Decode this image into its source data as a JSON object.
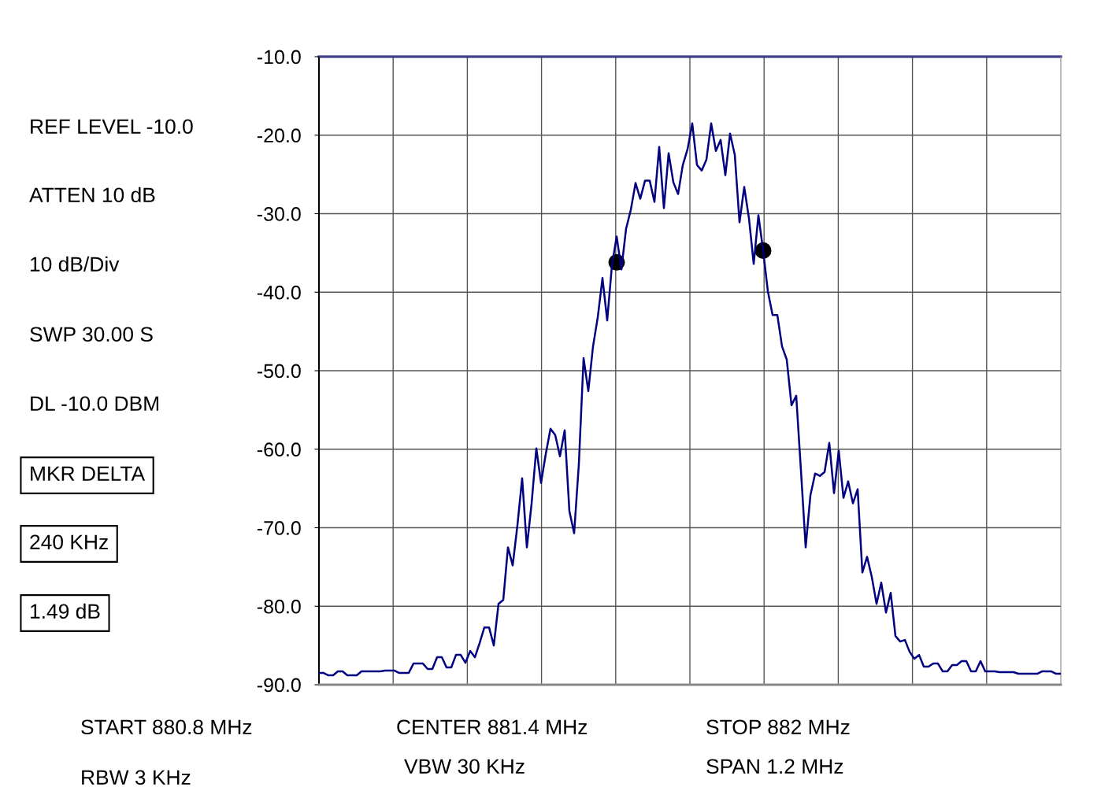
{
  "chart_data": {
    "type": "line",
    "annotations": [
      "REF LEVEL -10.0",
      "ATTEN 10 dB",
      "10 dB/Div",
      "SWP 30.00 S",
      "DL -10.0 DBM",
      "MKR DELTA",
      "240 KHz",
      "1.49 dB",
      "START 880.8 MHz",
      "RBW 3 KHz",
      "CENTER 881.4 MHz",
      "VBW 30 KHz",
      "STOP 882 MHz",
      "SPAN 1.2 MHz"
    ],
    "categories": [
      null,
      null,
      null,
      null,
      null,
      null,
      null,
      null,
      null,
      null,
      null,
      null,
      null,
      null,
      null,
      null,
      null,
      null,
      null,
      null,
      null,
      null,
      null,
      null,
      null,
      null,
      null,
      null,
      null,
      null,
      null,
      null,
      null,
      null,
      null,
      null,
      null,
      null,
      null,
      null,
      null,
      null,
      null,
      null,
      null,
      null,
      null,
      null,
      null,
      null,
      null,
      null,
      null,
      null,
      null,
      null,
      null,
      null,
      null,
      null,
      null,
      null,
      null,
      null,
      null,
      null,
      null,
      null,
      null,
      null,
      null,
      null,
      null,
      null,
      null,
      null,
      null,
      null,
      null,
      null,
      null,
      null,
      null,
      null,
      null,
      null,
      null,
      null,
      null,
      null,
      null,
      null,
      null,
      null,
      null,
      null,
      null,
      null,
      null,
      null,
      null,
      null,
      null,
      null,
      null,
      null,
      null,
      null,
      null,
      null,
      null,
      null,
      null,
      null,
      null,
      null,
      null,
      null,
      null,
      null,
      null,
      null,
      null,
      null,
      null,
      null,
      null,
      null,
      null,
      null,
      null,
      null,
      null,
      null,
      null,
      null,
      null,
      null,
      null,
      null,
      null,
      null,
      null,
      null,
      null,
      null,
      null,
      null,
      null,
      null,
      null,
      null,
      null,
      null,
      null,
      null,
      null,
      null
    ],
    "series": [
      {
        "type": "line",
        "color": "#000080",
        "values": [
          -88.5,
          -88.5,
          -88.8,
          -88.8,
          -88.3,
          -88.3,
          -88.8,
          -88.8,
          -88.8,
          -88.3,
          -88.3,
          -88.3,
          -88.3,
          -88.3,
          -88.2,
          -88.2,
          -88.2,
          -88.5,
          -88.5,
          -88.5,
          -87.3,
          -87.3,
          -87.3,
          -88.0,
          -88.0,
          -86.5,
          -86.5,
          -87.8,
          -87.8,
          -86.2,
          -86.2,
          -87.2,
          -85.7,
          -86.5,
          -84.7,
          -82.7,
          -82.7,
          -85.0,
          -79.7,
          -79.2,
          -72.5,
          -74.8,
          -69.7,
          -63.7,
          -72.5,
          -66.9,
          -59.9,
          -64.3,
          -60.6,
          -57.4,
          -58.2,
          -60.9,
          -57.6,
          -67.9,
          -70.7,
          -61.9,
          -48.4,
          -52.6,
          -46.9,
          -43.2,
          -38.2,
          -43.6,
          -36.6,
          -32.9,
          -37.1,
          -31.9,
          -29.5,
          -26.1,
          -28.1,
          -25.8,
          -25.8,
          -28.5,
          -21.5,
          -29.3,
          -22.3,
          -26.0,
          -27.5,
          -23.8,
          -21.8,
          -18.5,
          -23.8,
          -24.5,
          -23.1,
          -18.5,
          -22.0,
          -20.6,
          -25.1,
          -19.8,
          -22.5,
          -31.1,
          -26.6,
          -30.6,
          -36.4,
          -30.2,
          -34.7,
          -39.9,
          -42.9,
          -42.9,
          -46.9,
          -48.6,
          -54.4,
          -53.2,
          -62.7,
          -72.5,
          -65.9,
          -63.1,
          -63.4,
          -62.9,
          -59.2,
          -65.6,
          -60.2,
          -66.2,
          -64.1,
          -66.9,
          -65.1,
          -75.7,
          -73.7,
          -76.3,
          -79.7,
          -77.0,
          -80.8,
          -78.3,
          -83.8,
          -84.5,
          -84.3,
          -85.8,
          -86.7,
          -86.2,
          -87.7,
          -87.7,
          -87.3,
          -87.3,
          -88.3,
          -88.3,
          -87.5,
          -87.5,
          -87.0,
          -87.0,
          -88.3,
          -88.3,
          -87.0,
          -88.3,
          -88.3,
          -88.3,
          -88.4,
          -88.4,
          -88.4,
          -88.4,
          -88.6,
          -88.6,
          -88.6,
          -88.6,
          -88.6,
          -88.3,
          -88.3,
          -88.3,
          -88.6,
          -88.6
        ]
      },
      {
        "type": "scatter",
        "color": "#000000",
        "marker": "circle",
        "values": [
          null,
          null,
          null,
          null,
          null,
          null,
          null,
          null,
          null,
          null,
          null,
          null,
          null,
          null,
          null,
          null,
          null,
          null,
          null,
          null,
          null,
          null,
          null,
          null,
          null,
          null,
          null,
          null,
          null,
          null,
          null,
          null,
          null,
          null,
          null,
          null,
          null,
          null,
          null,
          null,
          null,
          null,
          null,
          null,
          null,
          null,
          null,
          null,
          null,
          null,
          null,
          null,
          null,
          null,
          null,
          null,
          null,
          null,
          null,
          null,
          null,
          null,
          null,
          -36.2,
          null,
          null,
          null,
          null,
          null,
          null,
          null,
          null,
          null,
          null,
          null,
          null,
          null,
          null,
          null,
          null,
          null,
          null,
          null,
          null,
          null,
          null,
          null,
          null,
          null,
          null,
          null,
          null,
          null,
          null,
          -34.7,
          null,
          null,
          null,
          null,
          null,
          null,
          null,
          null,
          null,
          null,
          null,
          null,
          null,
          null,
          null,
          null,
          null,
          null,
          null,
          null,
          null,
          null,
          null,
          null,
          null,
          null,
          null,
          null,
          null,
          null,
          null,
          null,
          null,
          null,
          null,
          null,
          null,
          null,
          null,
          null,
          null,
          null,
          null,
          null,
          null,
          null,
          null,
          null,
          null,
          null,
          null,
          null,
          null,
          null,
          null,
          null,
          null,
          null,
          null,
          null,
          null,
          null,
          null
        ]
      }
    ],
    "ylim": [
      -90,
      -10
    ],
    "yticks": [
      {
        "value": -90,
        "label": "-90.0"
      },
      {
        "value": -80,
        "label": "-80.0"
      },
      {
        "value": -70,
        "label": "-70.0"
      },
      {
        "value": -60,
        "label": "-60.0"
      },
      {
        "value": -50,
        "label": "-50.0"
      },
      {
        "value": -40,
        "label": "-40.0"
      },
      {
        "value": -30,
        "label": "-30.0"
      },
      {
        "value": -20,
        "label": "-20.0"
      },
      {
        "value": -10,
        "label": "-10.0"
      }
    ],
    "tick_labels": "y",
    "grid": true,
    "line_style": "solid",
    "ref_lines": [
      {
        "axis": "y",
        "value": -10,
        "color": "#000080",
        "line_style": "solid"
      }
    ]
  }
}
